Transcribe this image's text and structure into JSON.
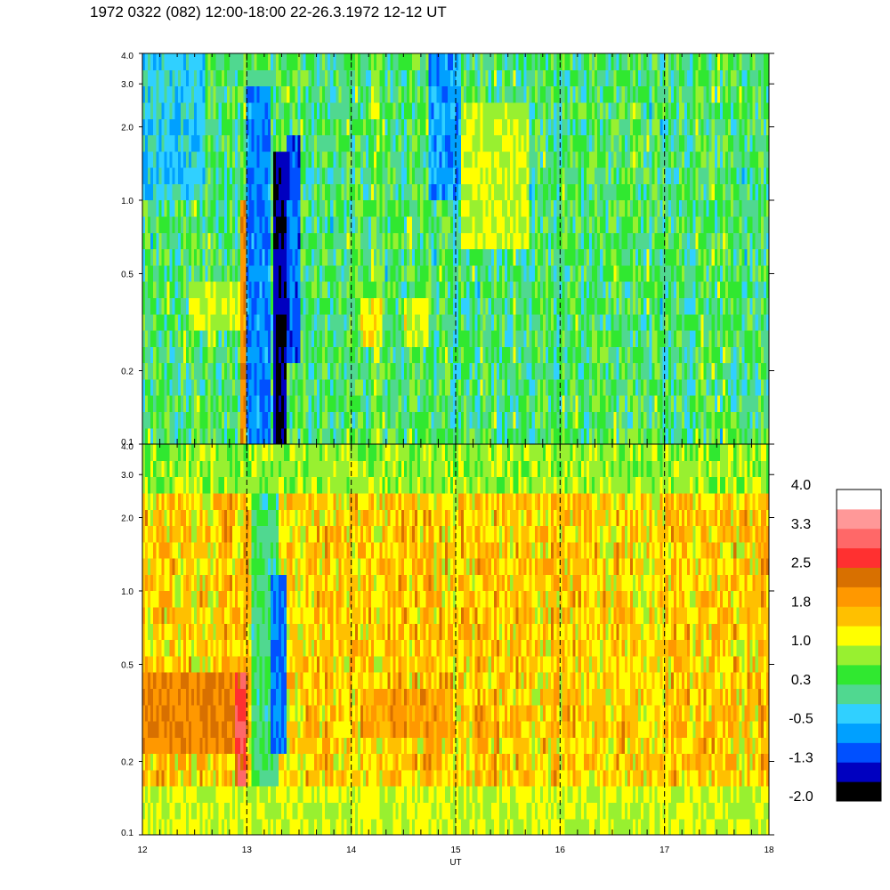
{
  "title": "1972 0322 (082) 12:00-18:00 22-26.3.1972  12-12 UT",
  "chart_data": [
    {
      "type": "heatmap",
      "panel": "upper",
      "x_ticks": [
        "12",
        "13",
        "14",
        "15",
        "16",
        "17",
        "18"
      ],
      "xlim": [
        12,
        18
      ],
      "y_scale": "log",
      "ylim": [
        0.1,
        4.0
      ],
      "y_ticks": [
        {
          "value": 0.1,
          "label": "0.1"
        },
        {
          "value": 0.2,
          "label": "0.2"
        },
        {
          "value": 0.5,
          "label": "0.5"
        },
        {
          "value": 1.0,
          "label": "1.0"
        },
        {
          "value": 2.0,
          "label": "2.0"
        },
        {
          "value": 3.0,
          "label": "3.0"
        },
        {
          "value": 4.0,
          "label": "4.0"
        }
      ],
      "dashed_vlines": [
        13,
        14,
        15,
        16,
        17
      ],
      "dominant_level": 0.3,
      "features": [
        {
          "x": [
            12.93,
            12.99
          ],
          "y": [
            0.1,
            1.0
          ],
          "level": 2.0
        },
        {
          "x": [
            12.99,
            13.22
          ],
          "y": [
            0.1,
            3.0
          ],
          "level": -0.8
        },
        {
          "x": [
            13.25,
            13.38
          ],
          "y": [
            0.1,
            1.5
          ],
          "level": -1.6
        },
        {
          "x": [
            13.38,
            13.5
          ],
          "y": [
            0.2,
            2.0
          ],
          "level": -1.0
        },
        {
          "x": [
            12.45,
            12.95
          ],
          "y": [
            0.28,
            0.5
          ],
          "level": 1.0
        },
        {
          "x": [
            14.1,
            14.3
          ],
          "y": [
            0.27,
            0.38
          ],
          "level": 1.2
        },
        {
          "x": [
            14.5,
            14.75
          ],
          "y": [
            0.27,
            0.38
          ],
          "level": 1.1
        },
        {
          "x": [
            14.75,
            15.05
          ],
          "y": [
            1.0,
            4.0
          ],
          "level": -0.7
        },
        {
          "x": [
            15.05,
            15.7
          ],
          "y": [
            0.6,
            2.5
          ],
          "level": 1.0
        },
        {
          "x": [
            12.0,
            12.6
          ],
          "y": [
            1.0,
            4.0
          ],
          "level": -0.3
        }
      ]
    },
    {
      "type": "heatmap",
      "panel": "lower",
      "x_ticks": [
        "12",
        "13",
        "14",
        "15",
        "16",
        "17",
        "18"
      ],
      "xlim": [
        12,
        18
      ],
      "xlabel": "UT",
      "y_scale": "log",
      "ylim": [
        0.1,
        4.0
      ],
      "y_ticks": [
        {
          "value": 0.1,
          "label": "0.1"
        },
        {
          "value": 0.2,
          "label": "0.2"
        },
        {
          "value": 0.5,
          "label": "0.5"
        },
        {
          "value": 1.0,
          "label": "1.0"
        },
        {
          "value": 2.0,
          "label": "2.0"
        },
        {
          "value": 3.0,
          "label": "3.0"
        },
        {
          "value": 4.0,
          "label": "4.0"
        }
      ],
      "dashed_vlines": [
        13,
        14,
        15,
        16,
        17
      ],
      "dominant_level": 1.5,
      "features": [
        {
          "x": [
            12.0,
            12.95
          ],
          "y": [
            0.22,
            0.5
          ],
          "level": 2.1
        },
        {
          "x": [
            12.88,
            12.98
          ],
          "y": [
            0.1,
            0.5
          ],
          "level": 2.7
        },
        {
          "x": [
            13.05,
            13.3
          ],
          "y": [
            0.15,
            3.0
          ],
          "level": 0.2
        },
        {
          "x": [
            13.22,
            13.38
          ],
          "y": [
            0.22,
            1.2
          ],
          "level": -0.9
        },
        {
          "x": [
            12.0,
            18.0
          ],
          "y": [
            0.1,
            0.16
          ],
          "level": 1.0
        },
        {
          "x": [
            12.0,
            18.0
          ],
          "y": [
            2.6,
            4.0
          ],
          "level": 0.8
        },
        {
          "x": [
            14.1,
            14.9
          ],
          "y": [
            0.25,
            0.4
          ],
          "level": 1.9
        }
      ]
    }
  ],
  "colorbar": {
    "colors": [
      "#000000",
      "#0000c0",
      "#0050ff",
      "#00a0ff",
      "#30d0ff",
      "#50d890",
      "#30e830",
      "#98f030",
      "#ffff00",
      "#ffc000",
      "#ff9800",
      "#d87000",
      "#ff3030",
      "#ff6868",
      "#ff9898",
      "#ffffff"
    ],
    "min": -2.0,
    "max": 4.0,
    "labels": [
      "4.0",
      "3.3",
      "2.5",
      "1.8",
      "1.0",
      "0.3",
      "-0.5",
      "-1.3",
      "-2.0"
    ]
  }
}
